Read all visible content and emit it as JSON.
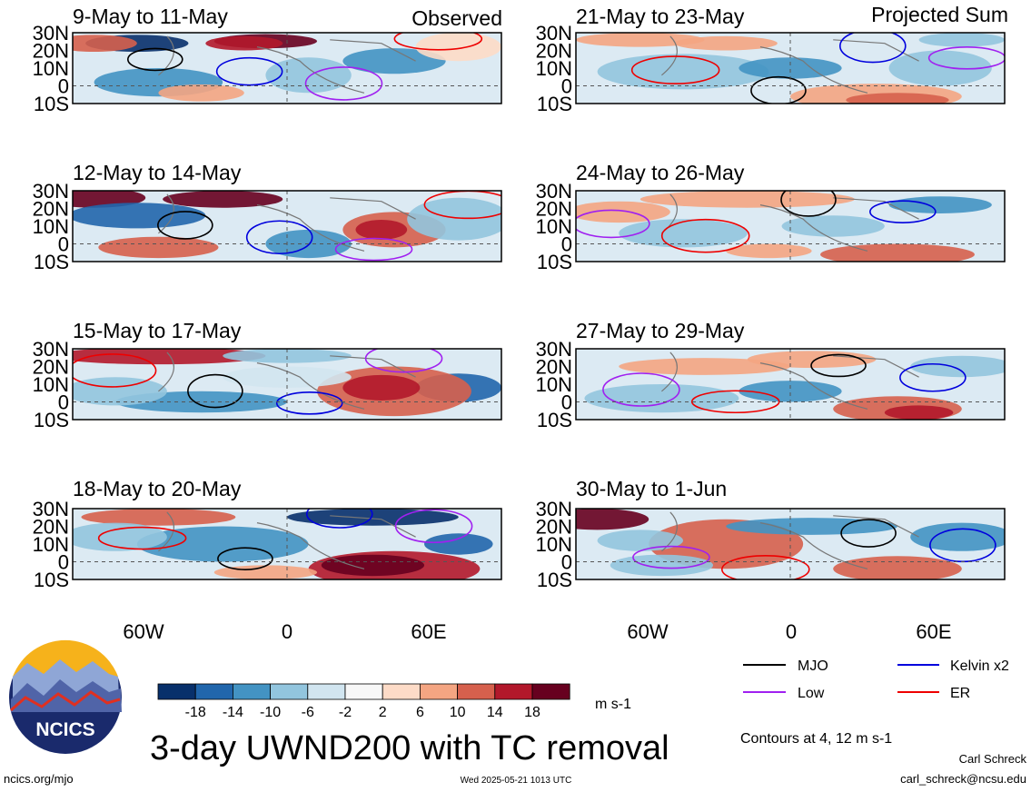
{
  "page": {
    "left_tag": "Observed",
    "right_tag": "Projected Sum",
    "main_title": "3-day UWND200 with TC removal",
    "units": "m s-1",
    "contour_note": "Contours at 4, 12 m s-1",
    "author": "Carl Schreck",
    "email": "carl_schreck@ncsu.edu",
    "site": "ncics.org/mjo",
    "timestamp": "Wed 2025-05-21 1013 UTC",
    "logo_text": "NCICS"
  },
  "lat_labels": [
    "30N",
    "20N",
    "10N",
    "0",
    "10S"
  ],
  "lon_labels": [
    "60W",
    "0",
    "60E"
  ],
  "colorbar": {
    "labels": [
      "-18",
      "-14",
      "-10",
      "-6",
      "-2",
      "2",
      "6",
      "10",
      "14",
      "18"
    ],
    "colors": [
      "#08306b",
      "#2166ac",
      "#4393c3",
      "#92c5de",
      "#d1e5f0",
      "#f7f7f7",
      "#fddbc7",
      "#f4a582",
      "#d6604d",
      "#b2182b",
      "#67001f"
    ]
  },
  "legend": [
    {
      "label": "MJO",
      "color": "#000000"
    },
    {
      "label": "Kelvin x2",
      "color": "#0000dd"
    },
    {
      "label": "Low",
      "color": "#a020f0"
    },
    {
      "label": "ER",
      "color": "#ee0000"
    }
  ],
  "panels": [
    {
      "title": "9-May to 11-May",
      "kind": "observed"
    },
    {
      "title": "12-May to 14-May",
      "kind": "observed"
    },
    {
      "title": "15-May to 17-May",
      "kind": "observed"
    },
    {
      "title": "18-May to 20-May",
      "kind": "observed"
    },
    {
      "title": "21-May to 23-May",
      "kind": "projected"
    },
    {
      "title": "24-May to 26-May",
      "kind": "projected"
    },
    {
      "title": "27-May to 29-May",
      "kind": "projected"
    },
    {
      "title": "30-May to 1-Jun",
      "kind": "projected"
    }
  ]
}
